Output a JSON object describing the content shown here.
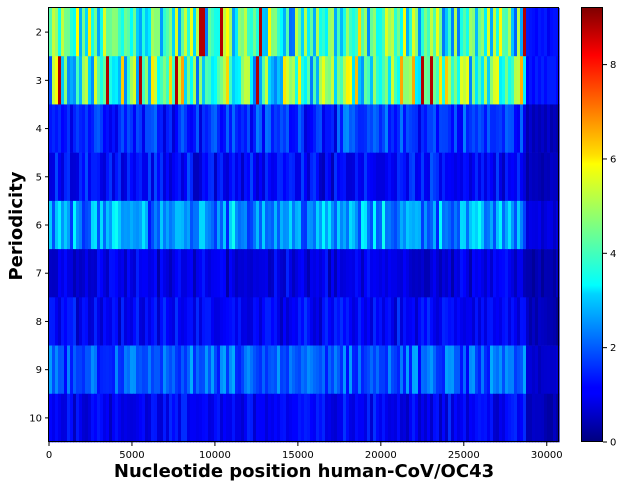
{
  "chart_data": {
    "type": "heatmap",
    "title": "",
    "xlabel": "Nucleotide position human-CoV/OC43",
    "ylabel": "Periodicity",
    "x_range": [
      0,
      30738
    ],
    "x_ticks": [
      0,
      5000,
      10000,
      15000,
      20000,
      25000,
      30000
    ],
    "rows": [
      2,
      3,
      4,
      5,
      6,
      7,
      8,
      9,
      10
    ],
    "colormap": "jet",
    "colorbar": {
      "range": [
        0,
        9.2
      ],
      "ticks": [
        0,
        2,
        4,
        6,
        8
      ]
    },
    "row_mean_values": [
      4.0,
      4.2,
      1.6,
      1.2,
      2.5,
      0.9,
      1.1,
      1.9,
      1.1
    ],
    "row_variability": [
      1.6,
      1.7,
      0.6,
      0.5,
      0.8,
      0.4,
      0.4,
      0.6,
      0.4
    ],
    "hotspots": [
      {
        "row": 2,
        "positions": [
          9200,
          9300,
          10400,
          12800,
          28600
        ]
      },
      {
        "row": 3,
        "positions": [
          700,
          3500,
          5500,
          7600,
          12500,
          22500,
          23100
        ]
      }
    ],
    "low_region_start": 28700,
    "x_tick_labels": [
      "0",
      "5000",
      "10000",
      "15000",
      "20000",
      "25000",
      "30000"
    ],
    "y_tick_labels": [
      "2",
      "3",
      "4",
      "5",
      "6",
      "7",
      "8",
      "9",
      "10"
    ],
    "colorbar_tick_labels": [
      "0",
      "2",
      "4",
      "6",
      "8"
    ]
  }
}
